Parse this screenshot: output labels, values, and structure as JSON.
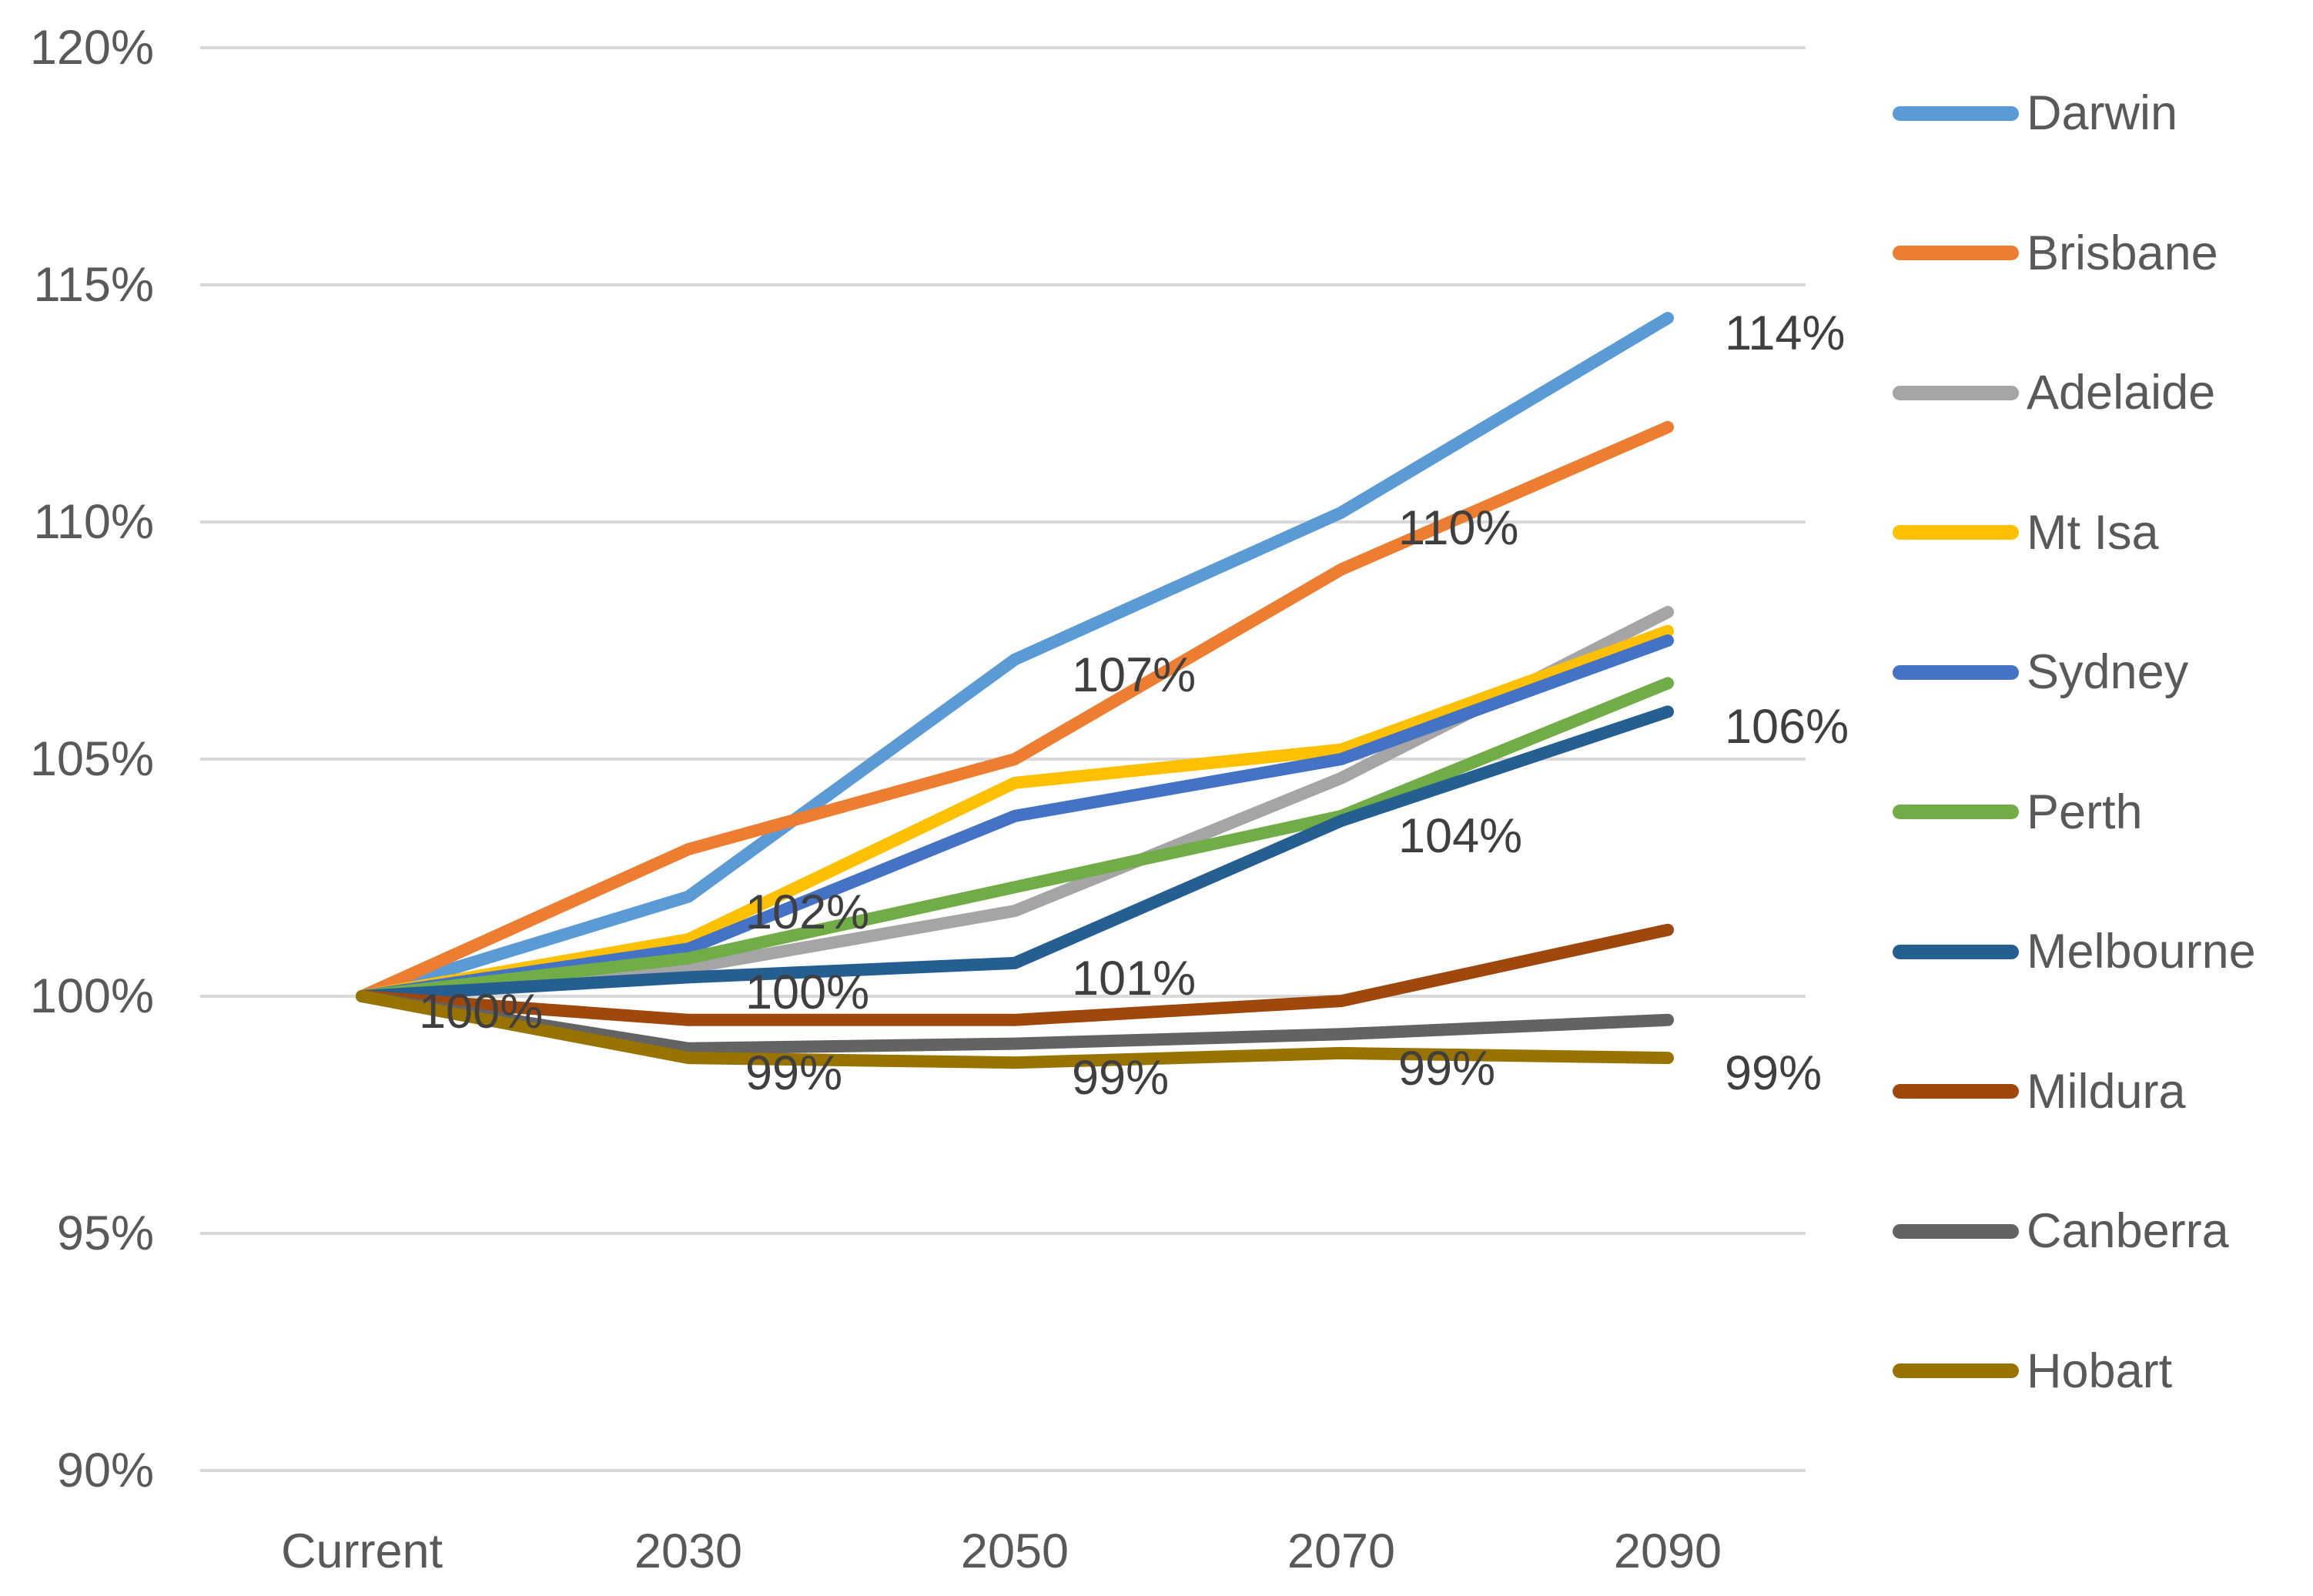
{
  "chart_data": {
    "type": "line",
    "title": "",
    "categories": [
      "Current",
      "2030",
      "2050",
      "2070",
      "2090"
    ],
    "series": [
      {
        "name": "Darwin",
        "color": "#5B9BD5",
        "values": [
          100,
          102.1,
          107.1,
          110.2,
          114.3
        ]
      },
      {
        "name": "Brisbane",
        "color": "#ED7D31",
        "values": [
          100,
          103.1,
          105.0,
          109.0,
          112.0
        ]
      },
      {
        "name": "Adelaide",
        "color": "#A5A5A5",
        "values": [
          100,
          100.6,
          101.8,
          104.6,
          108.1
        ]
      },
      {
        "name": "Mt Isa",
        "color": "#FFC000",
        "values": [
          100,
          101.2,
          104.5,
          105.2,
          107.7
        ]
      },
      {
        "name": "Sydney",
        "color": "#4472C4",
        "values": [
          100,
          101.0,
          103.8,
          105.0,
          107.5
        ]
      },
      {
        "name": "Perth",
        "color": "#70AD47",
        "values": [
          100,
          100.8,
          102.3,
          103.8,
          106.6
        ]
      },
      {
        "name": "Melbourne",
        "color": "#255E91",
        "values": [
          100,
          100.4,
          100.7,
          103.7,
          106.0
        ]
      },
      {
        "name": "Mildura",
        "color": "#9E480E",
        "values": [
          100,
          99.5,
          99.5,
          99.9,
          101.4
        ]
      },
      {
        "name": "Canberra",
        "color": "#636363",
        "values": [
          100,
          98.9,
          99.0,
          99.2,
          99.5
        ]
      },
      {
        "name": "Hobart",
        "color": "#997300",
        "values": [
          100,
          98.7,
          98.6,
          98.8,
          98.7
        ]
      }
    ],
    "y_axis": {
      "tick_labels": [
        "120%",
        "115%",
        "110%",
        "105%",
        "100%",
        "95%",
        "90%"
      ],
      "tick_values": [
        120,
        115,
        110,
        105,
        100,
        95,
        90
      ],
      "min": 90,
      "max": 120
    },
    "x_axis": {
      "labels": [
        "Current",
        "2030",
        "2050",
        "2070",
        "2090"
      ]
    },
    "grid": true,
    "legend_position": "right",
    "gridline_color": "#D9D9D9",
    "data_labels": [
      {
        "series": "Darwin",
        "labels": [
          "100%",
          "102%",
          "107%",
          "110%",
          "114%"
        ]
      },
      {
        "series": "Melbourne",
        "labels": [
          null,
          "100%",
          "101%",
          "104%",
          "106%"
        ]
      },
      {
        "series": "Hobart",
        "labels": [
          null,
          "99%",
          "99%",
          "99%",
          "99%"
        ]
      }
    ]
  }
}
